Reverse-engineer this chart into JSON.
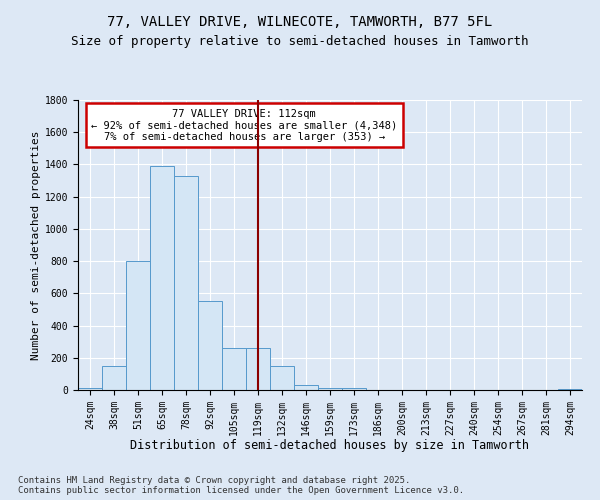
{
  "title1": "77, VALLEY DRIVE, WILNECOTE, TAMWORTH, B77 5FL",
  "title2": "Size of property relative to semi-detached houses in Tamworth",
  "xlabel": "Distribution of semi-detached houses by size in Tamworth",
  "ylabel": "Number of semi-detached properties",
  "categories": [
    "24sqm",
    "38sqm",
    "51sqm",
    "65sqm",
    "78sqm",
    "92sqm",
    "105sqm",
    "119sqm",
    "132sqm",
    "146sqm",
    "159sqm",
    "173sqm",
    "186sqm",
    "200sqm",
    "213sqm",
    "227sqm",
    "240sqm",
    "254sqm",
    "267sqm",
    "281sqm",
    "294sqm"
  ],
  "values": [
    10,
    150,
    800,
    1390,
    1330,
    550,
    260,
    260,
    150,
    30,
    15,
    10,
    0,
    0,
    0,
    0,
    0,
    0,
    0,
    0,
    5
  ],
  "bar_color": "#d4e6f5",
  "bar_edge_color": "#5599cc",
  "vline_color": "#8b0000",
  "vline_pos": 7.0,
  "annotation_text": "77 VALLEY DRIVE: 112sqm\n← 92% of semi-detached houses are smaller (4,348)\n7% of semi-detached houses are larger (353) →",
  "annotation_box_color": "#ffffff",
  "annotation_box_edge": "#cc0000",
  "ylim": [
    0,
    1800
  ],
  "yticks": [
    0,
    200,
    400,
    600,
    800,
    1000,
    1200,
    1400,
    1600,
    1800
  ],
  "bg_color": "#dde8f5",
  "footer": "Contains HM Land Registry data © Crown copyright and database right 2025.\nContains public sector information licensed under the Open Government Licence v3.0.",
  "title1_fontsize": 10,
  "title2_fontsize": 9,
  "xlabel_fontsize": 8.5,
  "ylabel_fontsize": 8,
  "tick_fontsize": 7,
  "footer_fontsize": 6.5,
  "annot_fontsize": 7.5
}
